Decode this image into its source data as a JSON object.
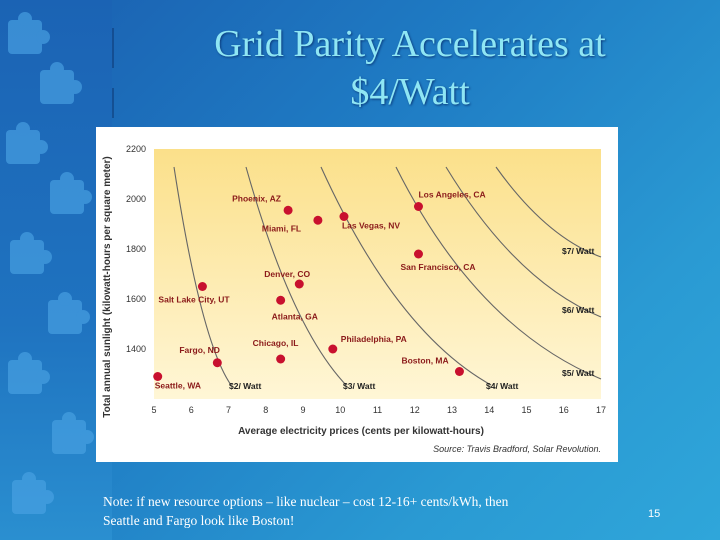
{
  "slide": {
    "title_line1": "Grid Parity Accelerates at",
    "title_line2": "$4/Watt",
    "note_line1": "Note:  if new resource options – like nuclear – cost 12-16+ cents/kWh, then",
    "note_line2": "Seattle and Fargo look like Boston!",
    "page_number": "15"
  },
  "chart_data": {
    "type": "scatter",
    "xlabel": "Average electricity prices (cents per kilowatt-hours)",
    "ylabel": "Total annual sunlight (kilowatt-hours per square meter)",
    "source": "Source: Travis Bradford, Solar Revolution.",
    "xlim": [
      5,
      17
    ],
    "ylim": [
      1200,
      2200
    ],
    "x_ticks": [
      5,
      6,
      7,
      8,
      9,
      10,
      11,
      12,
      13,
      14,
      15,
      16,
      17
    ],
    "y_ticks": [
      1400,
      1600,
      1800,
      2000,
      2200
    ],
    "points": [
      {
        "label": "Phoenix, AZ",
        "x": 8.6,
        "y": 1955
      },
      {
        "label": "Miami, FL",
        "x": 9.4,
        "y": 1915
      },
      {
        "label": "Las Vegas, NV",
        "x": 10.1,
        "y": 1930
      },
      {
        "label": "Los Angeles, CA",
        "x": 12.1,
        "y": 1970
      },
      {
        "label": "San Francisco, CA",
        "x": 12.1,
        "y": 1780
      },
      {
        "label": "Denver, CO",
        "x": 8.9,
        "y": 1660
      },
      {
        "label": "Salt Lake City, UT",
        "x": 6.3,
        "y": 1650
      },
      {
        "label": "Atlanta, GA",
        "x": 8.4,
        "y": 1595
      },
      {
        "label": "Chicago, IL",
        "x": 8.4,
        "y": 1360
      },
      {
        "label": "Philadelphia, PA",
        "x": 9.8,
        "y": 1400
      },
      {
        "label": "Fargo, ND",
        "x": 6.7,
        "y": 1345
      },
      {
        "label": "Boston, MA",
        "x": 13.2,
        "y": 1310
      },
      {
        "label": "Seattle, WA",
        "x": 5.1,
        "y": 1290
      }
    ],
    "curves": [
      {
        "label": "$2/ Watt"
      },
      {
        "label": "$3/ Watt"
      },
      {
        "label": "$4/ Watt"
      },
      {
        "label": "$5/ Watt"
      },
      {
        "label": "$6/ Watt"
      },
      {
        "label": "$7/ Watt"
      }
    ],
    "colors": {
      "point": "#c8102e",
      "curve": "#666666",
      "label": "#8b1a1a",
      "plot_bg": "#fbe28c"
    }
  }
}
